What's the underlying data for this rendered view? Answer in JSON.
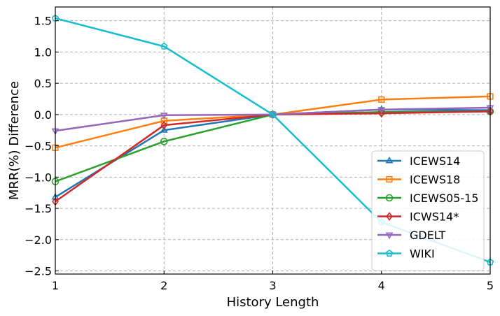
{
  "chart_data": {
    "type": "line",
    "title": "",
    "xlabel": "History Length",
    "ylabel": "MRR(%) Difference",
    "x": [
      1,
      2,
      3,
      4,
      5
    ],
    "xticks": [
      "1",
      "2",
      "3",
      "4",
      "5"
    ],
    "yticks": [
      1.5,
      1.0,
      0.5,
      0.0,
      -0.5,
      -1.0,
      -1.5,
      -2.0,
      -2.5
    ],
    "ytick_labels": [
      "1.5",
      "1.0",
      "0.5",
      "0.0",
      "−0.5",
      "−1.0",
      "−1.5",
      "−2.0",
      "−2.5"
    ],
    "xlim": [
      1,
      5
    ],
    "ylim": [
      -2.55,
      1.72
    ],
    "grid": true,
    "legend_position": "lower-right",
    "series": [
      {
        "name": "ICEWS14",
        "values": [
          -1.32,
          -0.25,
          0.0,
          0.08,
          0.07
        ],
        "color": "#1f77b4",
        "marker": "triangle-up"
      },
      {
        "name": "ICEWS18",
        "values": [
          -0.53,
          -0.1,
          0.0,
          0.24,
          0.29
        ],
        "color": "#ff7f0e",
        "marker": "square"
      },
      {
        "name": "ICEWS05-15",
        "values": [
          -1.07,
          -0.43,
          0.0,
          0.04,
          0.05
        ],
        "color": "#2ca02c",
        "marker": "circle"
      },
      {
        "name": "ICWS14*",
        "values": [
          -1.39,
          -0.17,
          0.0,
          0.02,
          0.05
        ],
        "color": "#d62728",
        "marker": "diamond"
      },
      {
        "name": "GDELT",
        "values": [
          -0.26,
          -0.01,
          0.0,
          0.08,
          0.11
        ],
        "color": "#9467bd",
        "marker": "triangle-down"
      },
      {
        "name": "WIKI",
        "values": [
          1.54,
          1.09,
          0.0,
          -1.72,
          -2.36
        ],
        "color": "#17becf",
        "marker": "pentagon"
      }
    ]
  }
}
